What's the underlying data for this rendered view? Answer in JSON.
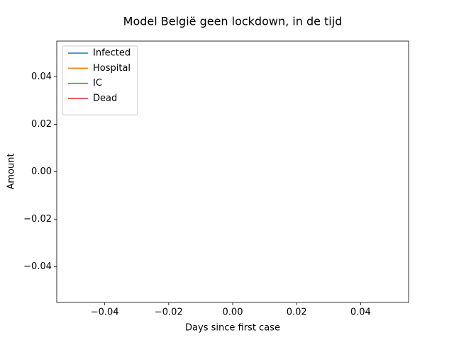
{
  "chart_data": {
    "type": "line",
    "title": "Model België geen lockdown, in de tijd",
    "xlabel": "Days since first case",
    "ylabel": "Amount",
    "x": [],
    "series": [
      {
        "name": "Infected",
        "color": "#1f77b4",
        "values": []
      },
      {
        "name": "Hospital",
        "color": "#ff7f0e",
        "values": []
      },
      {
        "name": "IC",
        "color": "#2ca02c",
        "values": []
      },
      {
        "name": "Dead",
        "color": "#d62728",
        "values": []
      }
    ],
    "xlim": [
      -0.055,
      0.055
    ],
    "xticks": [
      {
        "value": -0.04,
        "label": "−0.04"
      },
      {
        "value": -0.02,
        "label": "−0.02"
      },
      {
        "value": 0,
        "label": "0.00"
      },
      0.02,
      0.04
    ],
    "ylim": [
      -0.055,
      0.055
    ],
    "yticks": [
      {
        "value": -0.04,
        "label": "−0.04"
      },
      {
        "value": -0.02,
        "label": "−0.02"
      },
      {
        "value": 0,
        "label": "0.00"
      },
      0.02,
      0.04
    ],
    "legend": "upper left"
  }
}
